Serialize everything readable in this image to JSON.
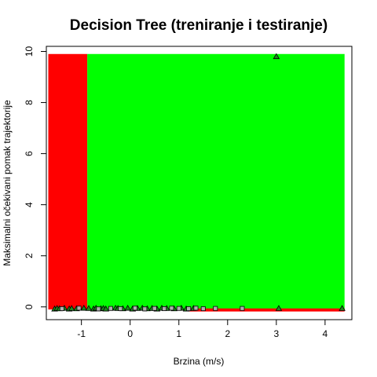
{
  "chart_data": {
    "type": "scatter",
    "title": "Decision Tree (treniranje i testiranje)",
    "xlabel": "Brzina (m/s)",
    "ylabel": "Maksimalni očekivani pomak trajektorije",
    "xlim": [
      -1.72,
      4.55
    ],
    "ylim": [
      -0.5,
      10.2
    ],
    "x_ticks": [
      -1,
      0,
      1,
      2,
      3,
      4
    ],
    "y_ticks": [
      0,
      2,
      4,
      6,
      8,
      10
    ],
    "grid": false,
    "legend": "none",
    "regions": [
      {
        "class": "red",
        "color": "#ff0000",
        "x": [
          -1.68,
          -0.88
        ],
        "y": [
          -0.1,
          9.9
        ]
      },
      {
        "class": "green",
        "color": "#00ff00",
        "x": [
          -0.88,
          4.4
        ],
        "y": [
          -0.1,
          9.9
        ]
      },
      {
        "class": "red",
        "color": "#ff0000",
        "x": [
          1.2,
          4.4
        ],
        "y": [
          -0.18,
          -0.06
        ]
      }
    ],
    "series": [
      {
        "marker": "triangle",
        "x": [
          -1.55,
          -1.5,
          -1.45,
          -1.35,
          -1.25,
          -1.2,
          -1.1,
          -0.95,
          -0.85,
          -0.75,
          -0.7,
          -0.6,
          -0.55,
          -0.5,
          -0.3,
          -0.25,
          -0.15,
          -0.05,
          0.05,
          0.15,
          0.25,
          0.35,
          0.45,
          0.55,
          0.65,
          0.75,
          0.9,
          1.05,
          1.15,
          1.3,
          3.05,
          4.35,
          3.0
        ],
        "y": [
          -0.08,
          -0.06,
          -0.07,
          -0.05,
          -0.08,
          -0.06,
          -0.07,
          -0.05,
          -0.06,
          -0.08,
          -0.05,
          -0.07,
          -0.06,
          -0.08,
          -0.05,
          -0.06,
          -0.07,
          -0.05,
          -0.08,
          -0.06,
          -0.05,
          -0.07,
          -0.06,
          -0.08,
          -0.05,
          -0.06,
          -0.07,
          -0.05,
          -0.08,
          -0.06,
          -0.06,
          -0.06,
          9.8
        ]
      },
      {
        "marker": "square",
        "x": [
          -1.4,
          -1.05,
          -0.65,
          -0.4,
          -0.2,
          0.1,
          0.3,
          0.5,
          0.7,
          0.85,
          1.0,
          1.2,
          1.35,
          1.5,
          1.75,
          2.3
        ],
        "y": [
          -0.07,
          -0.05,
          -0.08,
          -0.06,
          -0.07,
          -0.05,
          -0.08,
          -0.06,
          -0.07,
          -0.05,
          -0.06,
          -0.07,
          -0.05,
          -0.07,
          -0.06,
          -0.06
        ]
      }
    ]
  }
}
